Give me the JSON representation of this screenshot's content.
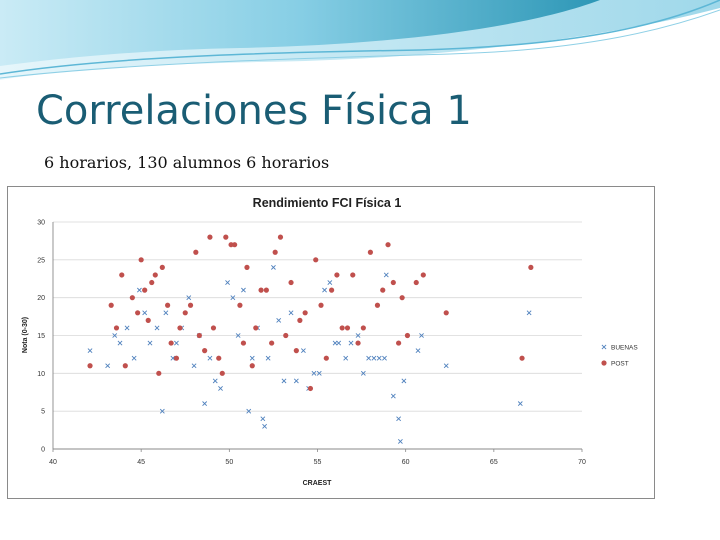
{
  "slide": {
    "title": "Correlaciones Física 1",
    "subtitle": "6 horarios, 130 alumnos 6 horarios"
  },
  "colors": {
    "banner_dark": "#1f8fb0",
    "banner_light": "#bfe6f2",
    "title": "#1a5d74",
    "buenas": "#4f81bd",
    "post": "#c0504d",
    "grid": "#d9d9d9"
  },
  "chart_data": {
    "type": "scatter",
    "title": "Rendimiento FCI Física 1",
    "xlabel": "CRAEST",
    "ylabel": "Nota (0-30)",
    "xlim": [
      40,
      70
    ],
    "ylim": [
      0,
      30
    ],
    "xticks": [
      40,
      45,
      50,
      55,
      60,
      65,
      70
    ],
    "yticks": [
      0,
      5,
      10,
      15,
      20,
      25,
      30
    ],
    "grid": "horizontal",
    "legend_position": "right",
    "series": [
      {
        "name": "BUENAS",
        "marker": "x",
        "color": "#4f81bd",
        "points": [
          [
            42.1,
            13
          ],
          [
            43.1,
            11
          ],
          [
            43.5,
            15
          ],
          [
            43.8,
            14
          ],
          [
            44.2,
            16
          ],
          [
            44.6,
            12
          ],
          [
            44.9,
            21
          ],
          [
            45.2,
            18
          ],
          [
            45.5,
            14
          ],
          [
            45.9,
            16
          ],
          [
            46.2,
            5
          ],
          [
            46.4,
            18
          ],
          [
            46.8,
            12
          ],
          [
            47.0,
            14
          ],
          [
            47.3,
            16
          ],
          [
            47.7,
            20
          ],
          [
            48.0,
            11
          ],
          [
            48.3,
            15
          ],
          [
            48.6,
            6
          ],
          [
            48.9,
            12
          ],
          [
            49.2,
            9
          ],
          [
            49.5,
            8
          ],
          [
            49.9,
            22
          ],
          [
            50.2,
            20
          ],
          [
            50.5,
            15
          ],
          [
            50.8,
            21
          ],
          [
            51.1,
            5
          ],
          [
            51.3,
            12
          ],
          [
            51.6,
            16
          ],
          [
            51.9,
            4
          ],
          [
            52.0,
            3
          ],
          [
            52.2,
            12
          ],
          [
            52.5,
            24
          ],
          [
            52.8,
            17
          ],
          [
            53.1,
            9
          ],
          [
            53.5,
            18
          ],
          [
            53.8,
            9
          ],
          [
            54.2,
            13
          ],
          [
            54.5,
            8
          ],
          [
            54.8,
            10
          ],
          [
            55.1,
            10
          ],
          [
            55.4,
            21
          ],
          [
            55.7,
            22
          ],
          [
            56.0,
            14
          ],
          [
            56.2,
            14
          ],
          [
            56.6,
            12
          ],
          [
            56.9,
            14
          ],
          [
            57.3,
            15
          ],
          [
            57.6,
            10
          ],
          [
            57.9,
            12
          ],
          [
            58.2,
            12
          ],
          [
            58.5,
            12
          ],
          [
            58.8,
            12
          ],
          [
            58.9,
            23
          ],
          [
            59.3,
            7
          ],
          [
            59.6,
            4
          ],
          [
            59.7,
            1
          ],
          [
            59.9,
            9
          ],
          [
            60.7,
            13
          ],
          [
            60.9,
            15
          ],
          [
            62.3,
            11
          ],
          [
            66.5,
            6
          ],
          [
            67.0,
            18
          ]
        ]
      },
      {
        "name": "POST",
        "marker": "circle",
        "color": "#c0504d",
        "points": [
          [
            42.1,
            11
          ],
          [
            43.3,
            19
          ],
          [
            43.6,
            16
          ],
          [
            43.9,
            23
          ],
          [
            44.1,
            11
          ],
          [
            44.5,
            20
          ],
          [
            44.8,
            18
          ],
          [
            45.0,
            25
          ],
          [
            45.2,
            21
          ],
          [
            45.4,
            17
          ],
          [
            45.6,
            22
          ],
          [
            45.8,
            23
          ],
          [
            46.0,
            10
          ],
          [
            46.2,
            24
          ],
          [
            46.5,
            19
          ],
          [
            46.7,
            14
          ],
          [
            47.0,
            12
          ],
          [
            47.2,
            16
          ],
          [
            47.5,
            18
          ],
          [
            47.8,
            19
          ],
          [
            48.1,
            26
          ],
          [
            48.3,
            15
          ],
          [
            48.6,
            13
          ],
          [
            48.9,
            28
          ],
          [
            49.1,
            16
          ],
          [
            49.4,
            12
          ],
          [
            49.6,
            10
          ],
          [
            49.8,
            28
          ],
          [
            50.1,
            27
          ],
          [
            50.3,
            27
          ],
          [
            50.6,
            19
          ],
          [
            50.8,
            14
          ],
          [
            51.0,
            24
          ],
          [
            51.3,
            11
          ],
          [
            51.5,
            16
          ],
          [
            51.8,
            21
          ],
          [
            52.1,
            21
          ],
          [
            52.4,
            14
          ],
          [
            52.6,
            26
          ],
          [
            52.9,
            28
          ],
          [
            53.2,
            15
          ],
          [
            53.5,
            22
          ],
          [
            53.8,
            13
          ],
          [
            54.0,
            17
          ],
          [
            54.3,
            18
          ],
          [
            54.6,
            8
          ],
          [
            54.9,
            25
          ],
          [
            55.2,
            19
          ],
          [
            55.5,
            12
          ],
          [
            55.8,
            21
          ],
          [
            56.1,
            23
          ],
          [
            56.4,
            16
          ],
          [
            56.7,
            16
          ],
          [
            57.0,
            23
          ],
          [
            57.3,
            14
          ],
          [
            57.6,
            16
          ],
          [
            58.0,
            26
          ],
          [
            58.4,
            19
          ],
          [
            58.7,
            21
          ],
          [
            59.0,
            27
          ],
          [
            59.3,
            22
          ],
          [
            59.6,
            14
          ],
          [
            59.8,
            20
          ],
          [
            60.1,
            15
          ],
          [
            60.6,
            22
          ],
          [
            61.0,
            23
          ],
          [
            62.3,
            18
          ],
          [
            66.6,
            12
          ],
          [
            67.1,
            24
          ]
        ]
      }
    ]
  }
}
